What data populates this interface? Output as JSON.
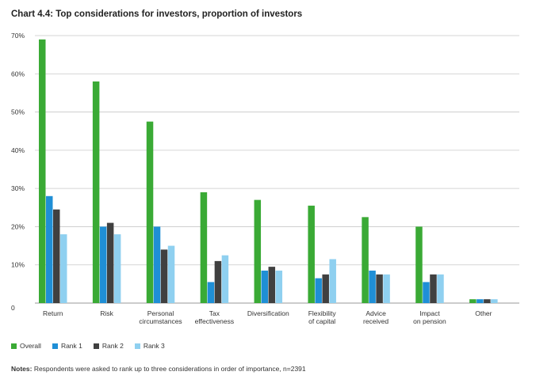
{
  "chart_data": {
    "type": "bar",
    "title": "Chart 4.4: Top considerations for investors, proportion of investors",
    "categories": [
      [
        "Return"
      ],
      [
        "Risk"
      ],
      [
        "Personal",
        "circumstances"
      ],
      [
        "Tax",
        "effectiveness"
      ],
      [
        "Diversification"
      ],
      [
        "Flexibility",
        "of capital"
      ],
      [
        "Advice",
        "received"
      ],
      [
        "Impact",
        "on pension"
      ],
      [
        "Other"
      ]
    ],
    "series": [
      {
        "name": "Overall",
        "color": "#3aaa35",
        "values": [
          69,
          58,
          47.5,
          29,
          27,
          25.5,
          22.5,
          20,
          1
        ]
      },
      {
        "name": "Rank 1",
        "color": "#1f8fd6",
        "values": [
          28,
          20,
          20,
          5.5,
          8.5,
          6.5,
          8.5,
          5.5,
          1
        ]
      },
      {
        "name": "Rank 2",
        "color": "#404040",
        "values": [
          24.5,
          21,
          14,
          11,
          9.5,
          7.5,
          7.5,
          7.5,
          1
        ]
      },
      {
        "name": "Rank 3",
        "color": "#8fd0f0",
        "values": [
          18,
          18,
          15,
          12.5,
          8.5,
          11.5,
          7.5,
          7.5,
          1
        ]
      }
    ],
    "yticks": [
      "0",
      "10%",
      "20%",
      "30%",
      "40%",
      "50%",
      "60%",
      "70%"
    ],
    "ylim": [
      0,
      70
    ],
    "grid": true,
    "legend_position": "bottom-left"
  },
  "notes": {
    "label": "Notes:",
    "text": " Respondents were asked to rank up to three considerations in order of importance, n=2391"
  }
}
